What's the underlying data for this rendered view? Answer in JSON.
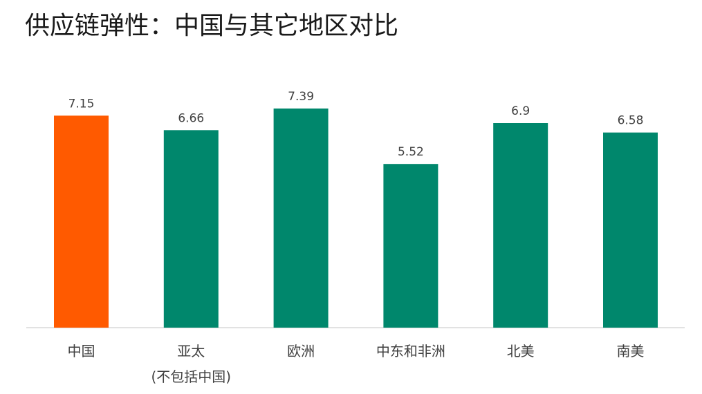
{
  "chart_data": {
    "type": "bar",
    "title": "供应链弹性：中国与其它地区对比",
    "categories": [
      [
        "中国"
      ],
      [
        "亚太",
        "(不包括中国)"
      ],
      [
        "欧洲"
      ],
      [
        "中东和非洲"
      ],
      [
        "北美"
      ],
      [
        "南美"
      ]
    ],
    "values": [
      7.15,
      6.66,
      7.39,
      5.52,
      6.9,
      6.58
    ],
    "value_labels": [
      "7.15",
      "6.66",
      "7.39",
      "5.52",
      "6.9",
      "6.58"
    ],
    "ylim": [
      0,
      7.39
    ],
    "grid": false,
    "legend": "none",
    "colors": {
      "highlight": "#FF5A00",
      "default": "#00876C",
      "axis": "#D9D9D9"
    },
    "highlight_index": 0
  }
}
